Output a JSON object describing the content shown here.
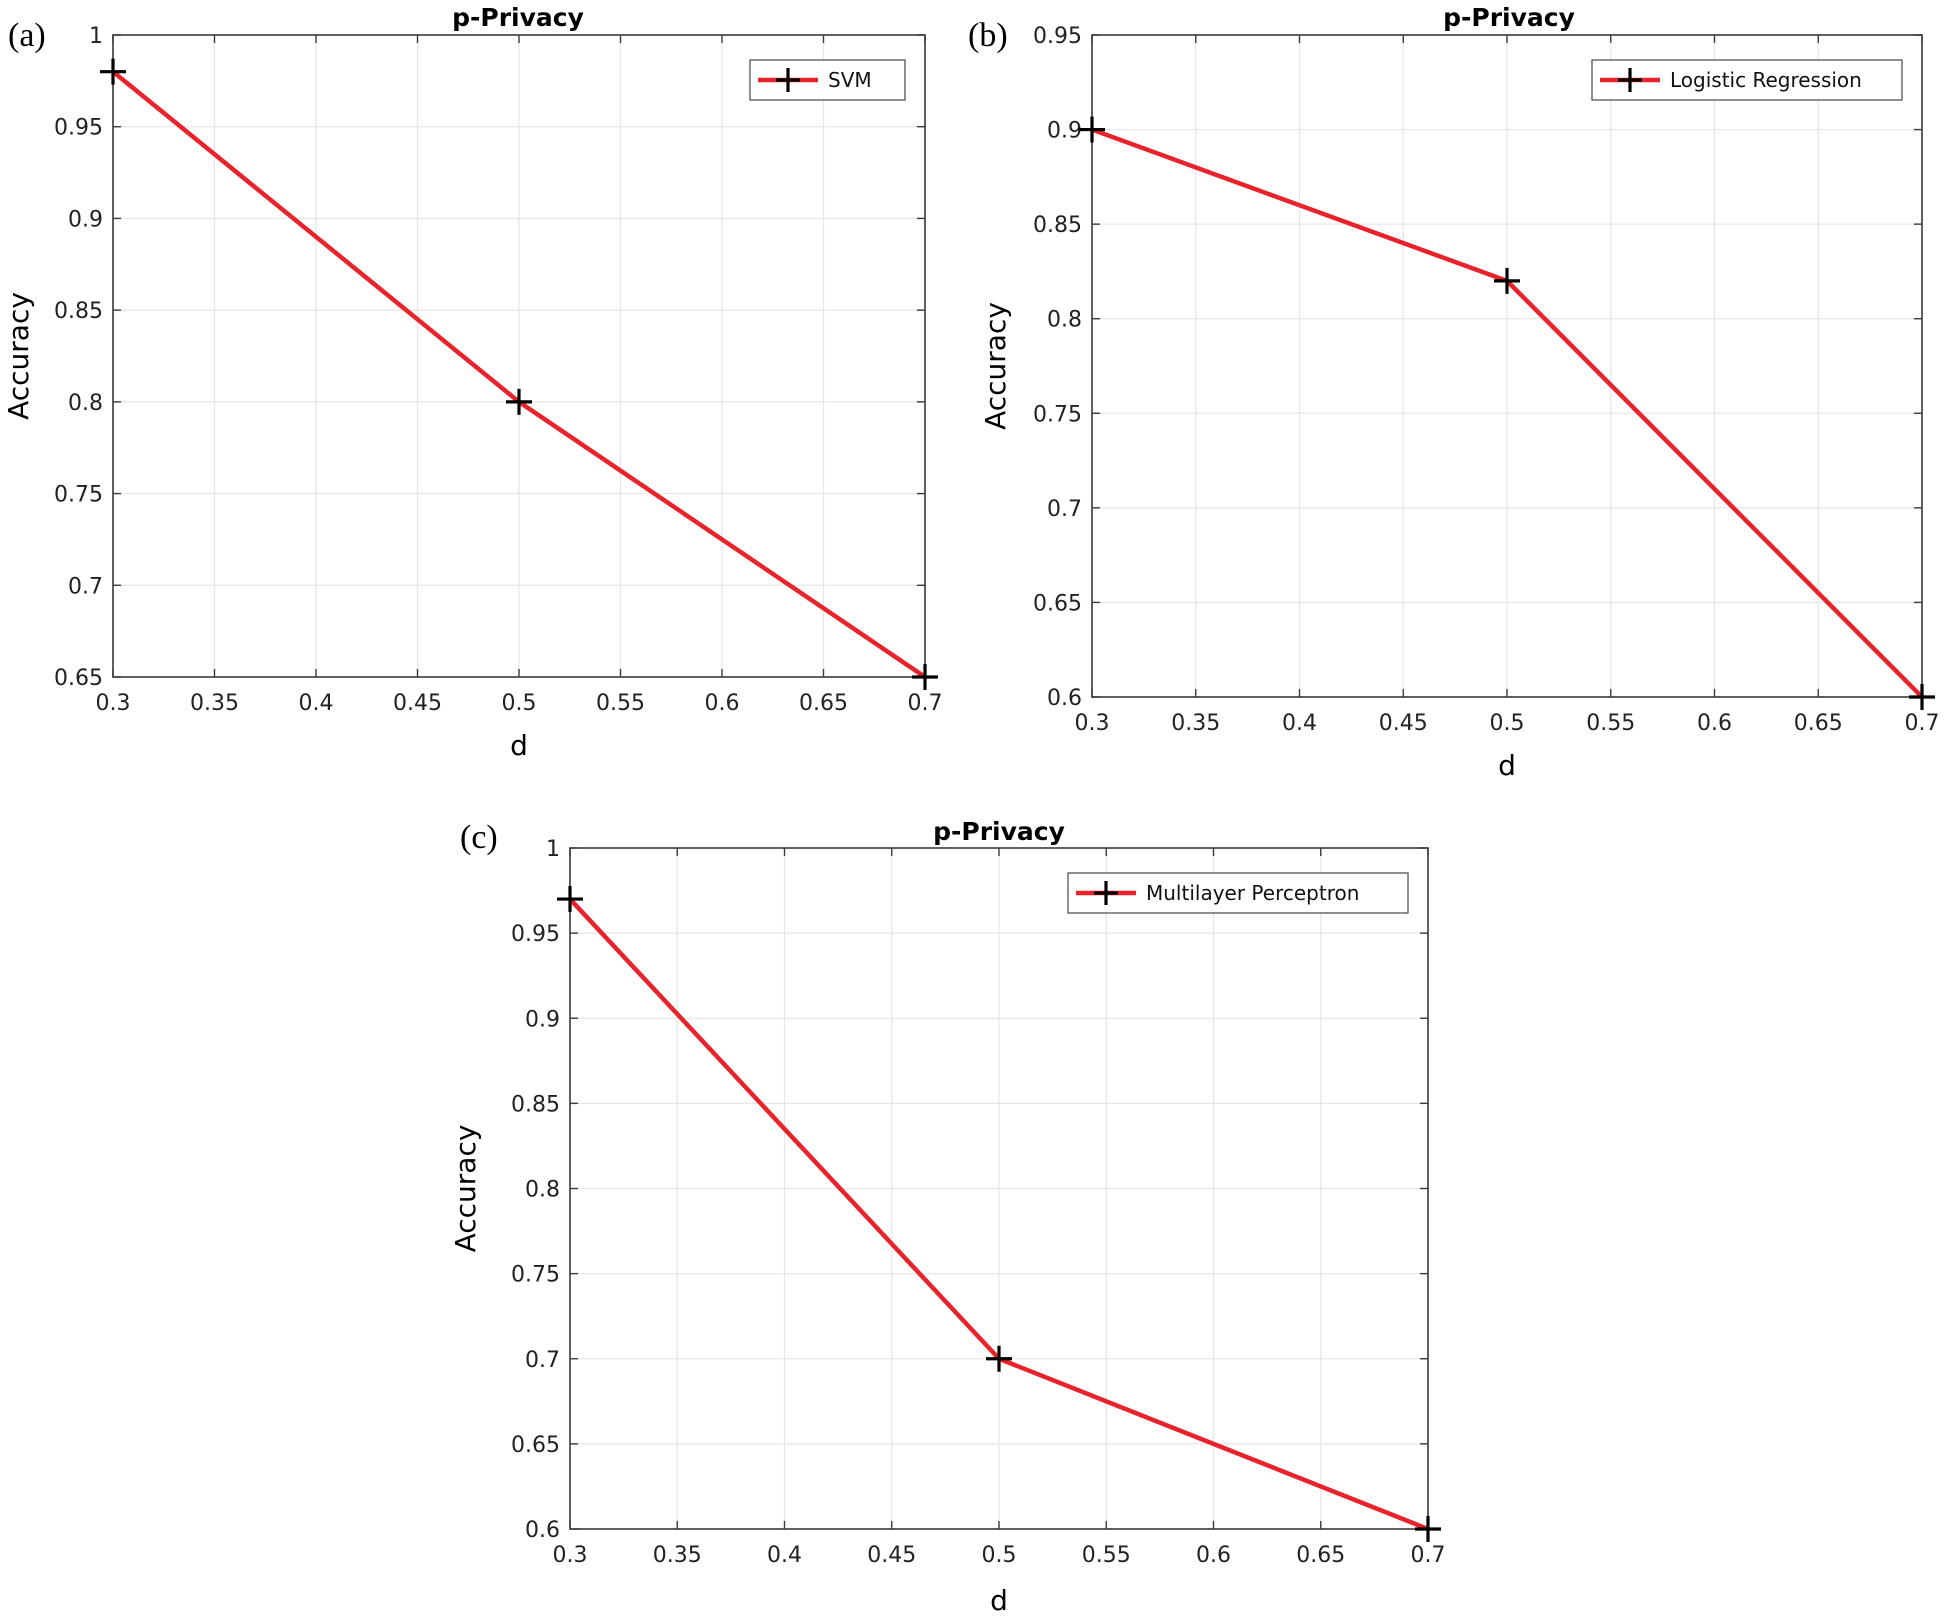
{
  "chart_data": [
    {
      "type": "line",
      "panel_label": "(a)",
      "title": "p-Privacy",
      "xlabel": "d",
      "ylabel": "Accuracy",
      "xlim": [
        0.3,
        0.7
      ],
      "ylim": [
        0.65,
        1.0
      ],
      "xticks": [
        "0.3",
        "0.35",
        "0.4",
        "0.45",
        "0.5",
        "0.55",
        "0.6",
        "0.65",
        "0.7"
      ],
      "yticks": [
        "0.65",
        "0.7",
        "0.75",
        "0.8",
        "0.85",
        "0.9",
        "0.95",
        "1"
      ],
      "grid": true,
      "legend_position": "top-right",
      "series": [
        {
          "name": "SVM",
          "color": "#e8232b",
          "marker": "cross",
          "x": [
            0.3,
            0.5,
            0.7
          ],
          "values": [
            0.98,
            0.8,
            0.65
          ]
        }
      ]
    },
    {
      "type": "line",
      "panel_label": "(b)",
      "title": "p-Privacy",
      "xlabel": "d",
      "ylabel": "Accuracy",
      "xlim": [
        0.3,
        0.7
      ],
      "ylim": [
        0.6,
        0.95
      ],
      "xticks": [
        "0.3",
        "0.35",
        "0.4",
        "0.45",
        "0.5",
        "0.55",
        "0.6",
        "0.65",
        "0.7"
      ],
      "yticks": [
        "0.6",
        "0.65",
        "0.7",
        "0.75",
        "0.8",
        "0.85",
        "0.9",
        "0.95"
      ],
      "grid": true,
      "legend_position": "top-right",
      "series": [
        {
          "name": "Logistic Regression",
          "color": "#e8232b",
          "marker": "cross",
          "x": [
            0.3,
            0.5,
            0.7
          ],
          "values": [
            0.9,
            0.82,
            0.6
          ]
        }
      ]
    },
    {
      "type": "line",
      "panel_label": "(c)",
      "title": "p-Privacy",
      "xlabel": "d",
      "ylabel": "Accuracy",
      "xlim": [
        0.3,
        0.7
      ],
      "ylim": [
        0.6,
        1.0
      ],
      "xticks": [
        "0.3",
        "0.35",
        "0.4",
        "0.45",
        "0.5",
        "0.55",
        "0.6",
        "0.65",
        "0.7"
      ],
      "yticks": [
        "0.6",
        "0.65",
        "0.7",
        "0.75",
        "0.8",
        "0.85",
        "0.9",
        "0.95",
        "1"
      ],
      "grid": true,
      "legend_position": "top-right",
      "series": [
        {
          "name": "Multilayer Perceptron",
          "color": "#e8232b",
          "marker": "cross",
          "x": [
            0.3,
            0.5,
            0.7
          ],
          "values": [
            0.97,
            0.7,
            0.6
          ]
        }
      ]
    }
  ]
}
